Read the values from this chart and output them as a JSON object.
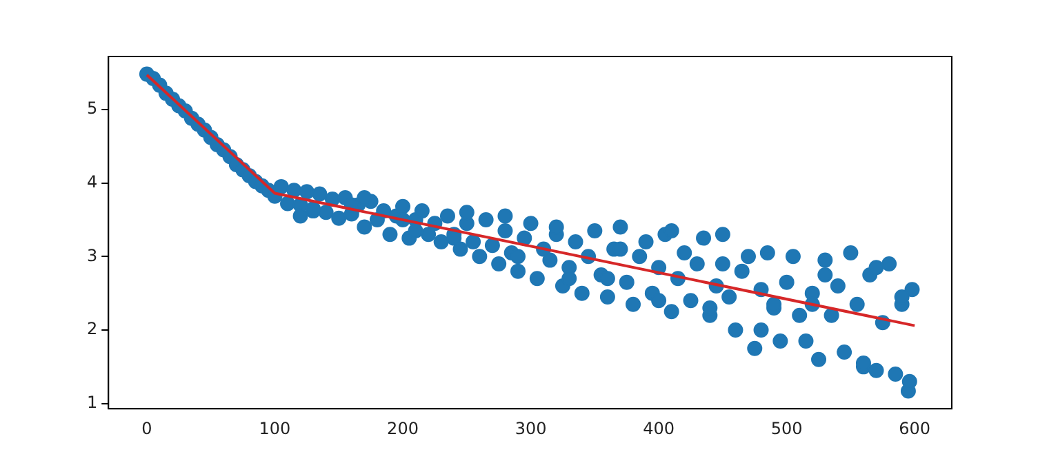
{
  "chart_data": {
    "type": "scatter",
    "xlim": [
      -30,
      629
    ],
    "ylim": [
      0.93,
      5.72
    ],
    "xticks": [
      0,
      100,
      200,
      300,
      400,
      500,
      600
    ],
    "yticks": [
      1,
      2,
      3,
      4,
      5
    ],
    "grid": false,
    "legend": false,
    "series": [
      {
        "type": "scatter",
        "color": "#1f77b4",
        "marker": "circle",
        "x": [
          0,
          5,
          10,
          15,
          20,
          25,
          30,
          35,
          40,
          45,
          50,
          55,
          60,
          65,
          70,
          75,
          80,
          85,
          90,
          95,
          100,
          105,
          110,
          115,
          120,
          125,
          130,
          135,
          140,
          145,
          150,
          155,
          160,
          165,
          170,
          175,
          180,
          185,
          190,
          195,
          200,
          205,
          210,
          215,
          220,
          225,
          230,
          235,
          240,
          245,
          250,
          255,
          260,
          265,
          270,
          275,
          280,
          285,
          290,
          295,
          300,
          305,
          310,
          315,
          320,
          325,
          330,
          335,
          340,
          345,
          350,
          355,
          360,
          365,
          370,
          375,
          380,
          385,
          390,
          395,
          400,
          405,
          410,
          415,
          420,
          425,
          430,
          435,
          440,
          445,
          450,
          455,
          460,
          465,
          470,
          475,
          480,
          485,
          490,
          495,
          500,
          505,
          510,
          515,
          520,
          525,
          530,
          535,
          540,
          545,
          550,
          555,
          560,
          565,
          570,
          575,
          580,
          585,
          590,
          595,
          598,
          120,
          160,
          200,
          240,
          280,
          320,
          360,
          400,
          440,
          480,
          520,
          560,
          590,
          130,
          170,
          210,
          250,
          290,
          330,
          370,
          410,
          450,
          490,
          530,
          570,
          596
        ],
        "values": [
          5.48,
          5.42,
          5.33,
          5.22,
          5.14,
          5.05,
          4.98,
          4.88,
          4.8,
          4.72,
          4.62,
          4.52,
          4.45,
          4.36,
          4.25,
          4.18,
          4.1,
          4.02,
          3.96,
          3.9,
          3.82,
          3.95,
          3.72,
          3.9,
          3.7,
          3.88,
          3.62,
          3.85,
          3.6,
          3.78,
          3.52,
          3.8,
          3.58,
          3.7,
          3.4,
          3.75,
          3.5,
          3.62,
          3.3,
          3.55,
          3.68,
          3.25,
          3.5,
          3.62,
          3.3,
          3.45,
          3.2,
          3.55,
          3.3,
          3.1,
          3.45,
          3.2,
          3.0,
          3.5,
          3.15,
          2.9,
          3.35,
          3.05,
          2.8,
          3.25,
          3.45,
          2.7,
          3.1,
          2.95,
          3.3,
          2.6,
          2.85,
          3.2,
          2.5,
          3.0,
          3.35,
          2.75,
          2.45,
          3.1,
          3.4,
          2.65,
          2.35,
          3.0,
          3.2,
          2.5,
          2.85,
          3.3,
          2.25,
          2.7,
          3.05,
          2.4,
          2.9,
          3.25,
          2.2,
          2.6,
          3.3,
          2.45,
          2.0,
          2.8,
          3.0,
          1.75,
          2.55,
          3.05,
          2.3,
          1.85,
          2.65,
          3.0,
          2.2,
          1.85,
          2.5,
          1.6,
          2.95,
          2.2,
          2.6,
          1.7,
          3.05,
          2.35,
          1.5,
          2.75,
          1.45,
          2.1,
          2.9,
          1.4,
          2.35,
          1.17,
          2.55,
          3.55,
          3.7,
          3.5,
          3.25,
          3.55,
          3.4,
          2.7,
          2.4,
          2.3,
          2.0,
          2.35,
          1.55,
          2.45,
          3.65,
          3.8,
          3.35,
          3.6,
          3.0,
          2.7,
          3.1,
          3.35,
          2.9,
          2.35,
          2.75,
          2.85,
          1.3
        ]
      },
      {
        "type": "line",
        "color": "#d62728",
        "marker": "none",
        "line_style": "solid",
        "x": [
          0,
          100,
          600
        ],
        "values": [
          5.47,
          3.86,
          2.06
        ]
      }
    ]
  }
}
